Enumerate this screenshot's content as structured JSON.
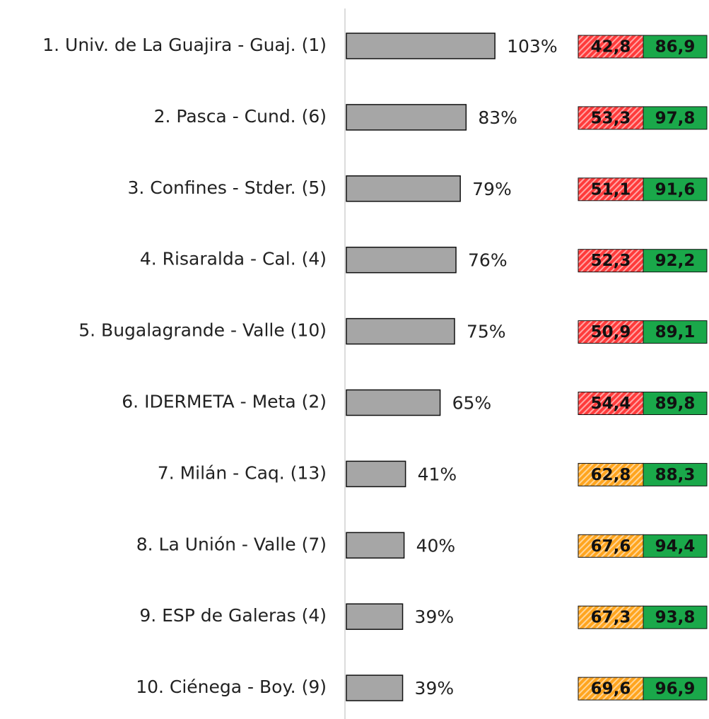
{
  "chart_data": {
    "type": "bar",
    "orientation": "horizontal",
    "categories": [
      "1. Univ. de La Guajira - Guaj. (1)",
      "2. Pasca - Cund. (6)",
      "3. Confines - Stder. (5)",
      "4. Risaralda - Cal. (4)",
      "5. Bugalagrande - Valle (10)",
      "6. IDERMETA - Meta (2)",
      "7. Milán - Caq. (13)",
      "8. La Unión - Valle (7)",
      "9. ESP de Galeras (4)",
      "10. Ciénega - Boy. (9)"
    ],
    "values": [
      103,
      83,
      79,
      76,
      75,
      65,
      41,
      40,
      39,
      39
    ],
    "value_labels": [
      "103%",
      "83%",
      "79%",
      "76%",
      "75%",
      "65%",
      "41%",
      "40%",
      "39%",
      "39%"
    ],
    "color": "#a6a6a6",
    "xlim": [
      0,
      100
    ],
    "score_a": {
      "values": [
        42.8,
        53.3,
        51.1,
        52.3,
        50.9,
        54.4,
        62.8,
        67.6,
        67.3,
        69.6
      ],
      "value_labels": [
        "42,8",
        "53,3",
        "51,1",
        "52,3",
        "50,9",
        "54,4",
        "62,8",
        "67,6",
        "67,3",
        "69,6"
      ],
      "colors": [
        "#ff3b3b",
        "#ff3b3b",
        "#ff3b3b",
        "#ff3b3b",
        "#ff3b3b",
        "#ff3b3b",
        "#ffa51f",
        "#ffa51f",
        "#ffa51f",
        "#ffa51f"
      ]
    },
    "score_b": {
      "values": [
        86.9,
        97.8,
        91.6,
        92.2,
        89.1,
        89.8,
        88.3,
        94.4,
        93.8,
        96.9
      ],
      "value_labels": [
        "86,9",
        "97,8",
        "91,6",
        "92,2",
        "89,1",
        "89,8",
        "88,3",
        "94,4",
        "93,8",
        "96,9"
      ],
      "color": "#1aa84a"
    }
  }
}
